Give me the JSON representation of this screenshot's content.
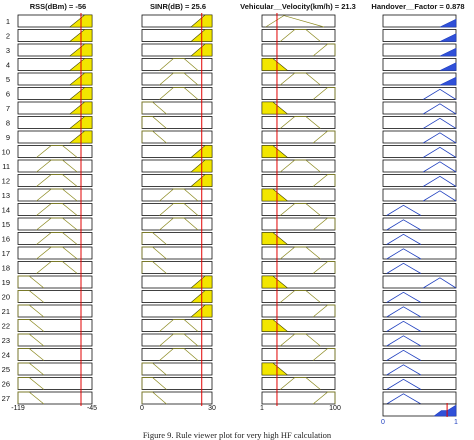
{
  "headers": {
    "rss": "RSS(dBm) = -56",
    "sinr": "SINR(dB) = 25.6",
    "velocity": "Vehicular__Velocity(km/h) = 21.3",
    "handover": "Handover__Factor = 0.878"
  },
  "inputs": {
    "rss": {
      "range": [
        -119,
        -45
      ],
      "value": -56,
      "range_labels": [
        "-119",
        "-45"
      ]
    },
    "sinr": {
      "range": [
        0,
        30
      ],
      "value": 25.6,
      "range_labels": [
        "0",
        "30"
      ]
    },
    "velocity": {
      "range": [
        1,
        100
      ],
      "value": 21.3,
      "range_labels": [
        "1",
        "100"
      ]
    }
  },
  "output": {
    "range": [
      0,
      1
    ],
    "value": 0.878,
    "range_labels": [
      "0",
      "1"
    ]
  },
  "rules": [
    {
      "num": "1",
      "rss": "high",
      "rss_active": true,
      "sinr": "high",
      "sinr_active": true,
      "vel": "all",
      "vel_active": false,
      "out": "high"
    },
    {
      "num": "2",
      "rss": "high",
      "rss_active": true,
      "sinr": "high",
      "sinr_active": true,
      "vel": "medium",
      "vel_active": false,
      "out": "high"
    },
    {
      "num": "3",
      "rss": "high",
      "rss_active": true,
      "sinr": "high",
      "sinr_active": true,
      "vel": "high",
      "vel_active": false,
      "out": "high"
    },
    {
      "num": "4",
      "rss": "high",
      "rss_active": true,
      "sinr": "medium",
      "sinr_active": false,
      "vel": "low",
      "vel_active": true,
      "out": "high"
    },
    {
      "num": "5",
      "rss": "high",
      "rss_active": true,
      "sinr": "medium",
      "sinr_active": false,
      "vel": "medium",
      "vel_active": false,
      "out": "high"
    },
    {
      "num": "6",
      "rss": "high",
      "rss_active": true,
      "sinr": "medium",
      "sinr_active": false,
      "vel": "high",
      "vel_active": false,
      "out": "medium"
    },
    {
      "num": "7",
      "rss": "high",
      "rss_active": true,
      "sinr": "low",
      "sinr_active": false,
      "vel": "low",
      "vel_active": true,
      "out": "medium"
    },
    {
      "num": "8",
      "rss": "high",
      "rss_active": true,
      "sinr": "low",
      "sinr_active": false,
      "vel": "medium",
      "vel_active": false,
      "out": "medium"
    },
    {
      "num": "9",
      "rss": "high",
      "rss_active": true,
      "sinr": "low",
      "sinr_active": false,
      "vel": "high",
      "vel_active": false,
      "out": "medium"
    },
    {
      "num": "10",
      "rss": "medium",
      "rss_active": false,
      "sinr": "high",
      "sinr_active": true,
      "vel": "low",
      "vel_active": true,
      "out": "medium"
    },
    {
      "num": "11",
      "rss": "medium",
      "rss_active": false,
      "sinr": "high",
      "sinr_active": true,
      "vel": "medium",
      "vel_active": false,
      "out": "medium"
    },
    {
      "num": "12",
      "rss": "medium",
      "rss_active": false,
      "sinr": "high",
      "sinr_active": true,
      "vel": "high",
      "vel_active": false,
      "out": "medium"
    },
    {
      "num": "13",
      "rss": "medium",
      "rss_active": false,
      "sinr": "medium",
      "sinr_active": false,
      "vel": "low",
      "vel_active": true,
      "out": "medium"
    },
    {
      "num": "14",
      "rss": "medium",
      "rss_active": false,
      "sinr": "medium",
      "sinr_active": false,
      "vel": "medium",
      "vel_active": false,
      "out": "low"
    },
    {
      "num": "15",
      "rss": "medium",
      "rss_active": false,
      "sinr": "medium",
      "sinr_active": false,
      "vel": "high",
      "vel_active": false,
      "out": "low"
    },
    {
      "num": "16",
      "rss": "medium",
      "rss_active": false,
      "sinr": "low",
      "sinr_active": false,
      "vel": "low",
      "vel_active": true,
      "out": "low"
    },
    {
      "num": "17",
      "rss": "medium",
      "rss_active": false,
      "sinr": "low",
      "sinr_active": false,
      "vel": "medium",
      "vel_active": false,
      "out": "low"
    },
    {
      "num": "18",
      "rss": "medium",
      "rss_active": false,
      "sinr": "low",
      "sinr_active": false,
      "vel": "high",
      "vel_active": false,
      "out": "low"
    },
    {
      "num": "19",
      "rss": "low",
      "rss_active": false,
      "sinr": "high",
      "sinr_active": true,
      "vel": "low",
      "vel_active": true,
      "out": "medium"
    },
    {
      "num": "20",
      "rss": "low",
      "rss_active": false,
      "sinr": "high",
      "sinr_active": true,
      "vel": "medium",
      "vel_active": false,
      "out": "low"
    },
    {
      "num": "21",
      "rss": "low",
      "rss_active": false,
      "sinr": "high",
      "sinr_active": true,
      "vel": "high",
      "vel_active": false,
      "out": "low"
    },
    {
      "num": "22",
      "rss": "low",
      "rss_active": false,
      "sinr": "medium",
      "sinr_active": false,
      "vel": "low",
      "vel_active": true,
      "out": "low"
    },
    {
      "num": "23",
      "rss": "low",
      "rss_active": false,
      "sinr": "medium",
      "sinr_active": false,
      "vel": "medium",
      "vel_active": false,
      "out": "low"
    },
    {
      "num": "24",
      "rss": "low",
      "rss_active": false,
      "sinr": "medium",
      "sinr_active": false,
      "vel": "high",
      "vel_active": false,
      "out": "low"
    },
    {
      "num": "25",
      "rss": "low",
      "rss_active": false,
      "sinr": "low",
      "sinr_active": false,
      "vel": "low",
      "vel_active": true,
      "out": "low"
    },
    {
      "num": "26",
      "rss": "low",
      "rss_active": false,
      "sinr": "low",
      "sinr_active": false,
      "vel": "medium",
      "vel_active": false,
      "out": "low"
    },
    {
      "num": "27",
      "rss": "low",
      "rss_active": false,
      "sinr": "low",
      "sinr_active": false,
      "vel": "high",
      "vel_active": false,
      "out": "low"
    }
  ],
  "caption": "Figure 9. Rule viewer plot for very high HF calculation",
  "colors": {
    "fill": "#f2e600",
    "output": "#3050d8",
    "indicator": "#e10000"
  }
}
